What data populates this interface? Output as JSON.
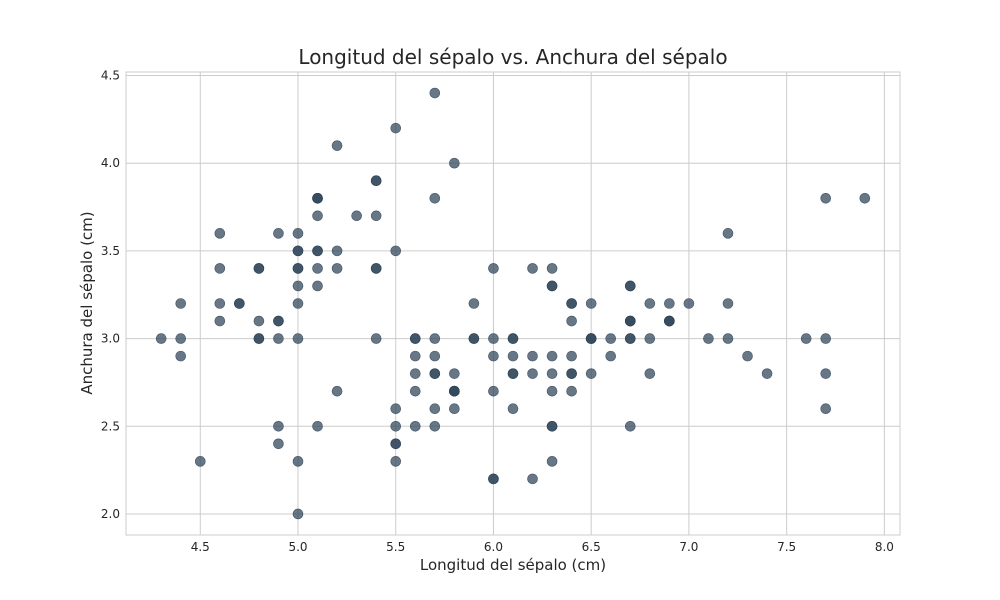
{
  "chart_data": {
    "type": "scatter",
    "title": "Longitud del sépalo vs. Anchura del sépalo",
    "xlabel": "Longitud del sépalo (cm)",
    "ylabel": "Anchura del sépalo (cm)",
    "xlim": [
      4.12,
      8.08
    ],
    "ylim": [
      1.88,
      4.52
    ],
    "xticks": [
      "4.5",
      "5.0",
      "5.5",
      "6.0",
      "6.5",
      "7.0",
      "7.5",
      "8.0"
    ],
    "yticks": [
      "2.0",
      "2.5",
      "3.0",
      "3.5",
      "4.0",
      "4.5"
    ],
    "grid": true,
    "marker_color": "#34495e",
    "marker_alpha": 0.75,
    "points": [
      [
        5.1,
        3.5
      ],
      [
        4.9,
        3.0
      ],
      [
        4.7,
        3.2
      ],
      [
        4.6,
        3.1
      ],
      [
        5.0,
        3.6
      ],
      [
        5.4,
        3.9
      ],
      [
        4.6,
        3.4
      ],
      [
        5.0,
        3.4
      ],
      [
        4.4,
        2.9
      ],
      [
        4.9,
        3.1
      ],
      [
        5.4,
        3.7
      ],
      [
        4.8,
        3.4
      ],
      [
        4.8,
        3.0
      ],
      [
        4.3,
        3.0
      ],
      [
        5.8,
        4.0
      ],
      [
        5.7,
        4.4
      ],
      [
        5.4,
        3.9
      ],
      [
        5.1,
        3.5
      ],
      [
        5.7,
        3.8
      ],
      [
        5.1,
        3.8
      ],
      [
        5.4,
        3.4
      ],
      [
        5.1,
        3.7
      ],
      [
        4.6,
        3.6
      ],
      [
        5.1,
        3.3
      ],
      [
        4.8,
        3.4
      ],
      [
        5.0,
        3.0
      ],
      [
        5.0,
        3.4
      ],
      [
        5.2,
        3.5
      ],
      [
        5.2,
        3.4
      ],
      [
        4.7,
        3.2
      ],
      [
        4.8,
        3.1
      ],
      [
        5.4,
        3.4
      ],
      [
        5.2,
        4.1
      ],
      [
        5.5,
        4.2
      ],
      [
        4.9,
        3.1
      ],
      [
        5.0,
        3.2
      ],
      [
        5.5,
        3.5
      ],
      [
        4.9,
        3.6
      ],
      [
        4.4,
        3.0
      ],
      [
        5.1,
        3.4
      ],
      [
        5.0,
        3.5
      ],
      [
        4.5,
        2.3
      ],
      [
        4.4,
        3.2
      ],
      [
        5.0,
        3.5
      ],
      [
        5.1,
        3.8
      ],
      [
        4.8,
        3.0
      ],
      [
        5.1,
        3.8
      ],
      [
        4.6,
        3.2
      ],
      [
        5.3,
        3.7
      ],
      [
        5.0,
        3.3
      ],
      [
        7.0,
        3.2
      ],
      [
        6.4,
        3.2
      ],
      [
        6.9,
        3.1
      ],
      [
        5.5,
        2.3
      ],
      [
        6.5,
        2.8
      ],
      [
        5.7,
        2.8
      ],
      [
        6.3,
        3.3
      ],
      [
        4.9,
        2.4
      ],
      [
        6.6,
        2.9
      ],
      [
        5.2,
        2.7
      ],
      [
        5.0,
        2.0
      ],
      [
        5.9,
        3.0
      ],
      [
        6.0,
        2.2
      ],
      [
        6.1,
        2.9
      ],
      [
        5.6,
        2.9
      ],
      [
        6.7,
        3.1
      ],
      [
        5.6,
        3.0
      ],
      [
        5.8,
        2.7
      ],
      [
        6.2,
        2.2
      ],
      [
        5.6,
        2.5
      ],
      [
        5.9,
        3.2
      ],
      [
        6.1,
        2.8
      ],
      [
        6.3,
        2.5
      ],
      [
        6.1,
        2.8
      ],
      [
        6.4,
        2.9
      ],
      [
        6.6,
        3.0
      ],
      [
        6.8,
        2.8
      ],
      [
        6.7,
        3.0
      ],
      [
        6.0,
        2.9
      ],
      [
        5.7,
        2.6
      ],
      [
        5.5,
        2.4
      ],
      [
        5.5,
        2.4
      ],
      [
        5.8,
        2.7
      ],
      [
        6.0,
        2.7
      ],
      [
        5.4,
        3.0
      ],
      [
        6.0,
        3.4
      ],
      [
        6.7,
        3.1
      ],
      [
        6.3,
        2.3
      ],
      [
        5.6,
        3.0
      ],
      [
        5.5,
        2.5
      ],
      [
        5.5,
        2.6
      ],
      [
        6.1,
        3.0
      ],
      [
        5.8,
        2.6
      ],
      [
        5.0,
        2.3
      ],
      [
        5.6,
        2.7
      ],
      [
        5.7,
        3.0
      ],
      [
        5.7,
        2.9
      ],
      [
        6.2,
        2.9
      ],
      [
        5.1,
        2.5
      ],
      [
        5.7,
        2.8
      ],
      [
        6.3,
        3.3
      ],
      [
        5.8,
        2.7
      ],
      [
        7.1,
        3.0
      ],
      [
        6.3,
        2.9
      ],
      [
        6.5,
        3.0
      ],
      [
        7.6,
        3.0
      ],
      [
        4.9,
        2.5
      ],
      [
        7.3,
        2.9
      ],
      [
        6.7,
        2.5
      ],
      [
        7.2,
        3.6
      ],
      [
        6.5,
        3.2
      ],
      [
        6.4,
        2.7
      ],
      [
        6.8,
        3.0
      ],
      [
        5.7,
        2.5
      ],
      [
        5.8,
        2.8
      ],
      [
        6.4,
        3.2
      ],
      [
        6.5,
        3.0
      ],
      [
        7.7,
        3.8
      ],
      [
        7.7,
        2.6
      ],
      [
        6.0,
        2.2
      ],
      [
        6.9,
        3.2
      ],
      [
        5.6,
        2.8
      ],
      [
        7.7,
        2.8
      ],
      [
        6.3,
        2.7
      ],
      [
        6.7,
        3.3
      ],
      [
        7.2,
        3.2
      ],
      [
        6.2,
        2.8
      ],
      [
        6.1,
        3.0
      ],
      [
        6.4,
        2.8
      ],
      [
        7.2,
        3.0
      ],
      [
        7.4,
        2.8
      ],
      [
        7.9,
        3.8
      ],
      [
        6.4,
        2.8
      ],
      [
        6.3,
        2.8
      ],
      [
        6.1,
        2.6
      ],
      [
        7.7,
        3.0
      ],
      [
        6.3,
        3.4
      ],
      [
        6.4,
        3.1
      ],
      [
        6.0,
        3.0
      ],
      [
        6.9,
        3.1
      ],
      [
        6.7,
        3.1
      ],
      [
        6.9,
        3.1
      ],
      [
        5.8,
        2.7
      ],
      [
        6.8,
        3.2
      ],
      [
        6.7,
        3.3
      ],
      [
        6.7,
        3.0
      ],
      [
        6.3,
        2.5
      ],
      [
        6.5,
        3.0
      ],
      [
        6.2,
        3.4
      ],
      [
        5.9,
        3.0
      ]
    ]
  }
}
